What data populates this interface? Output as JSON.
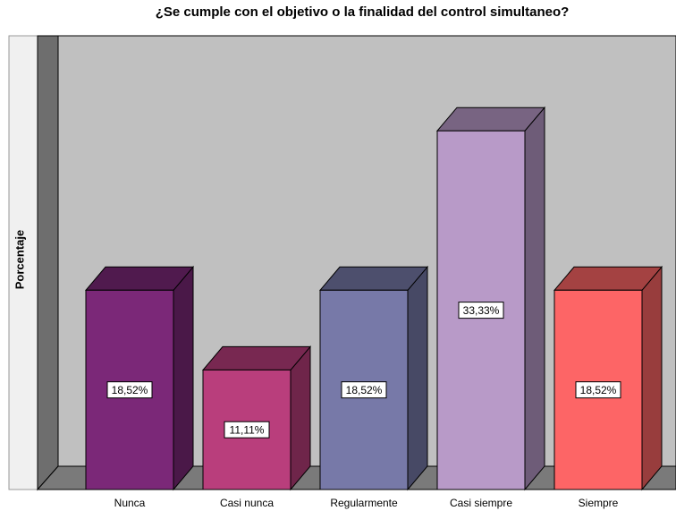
{
  "chart_data": {
    "type": "bar3d",
    "title": "¿Se cumple con el objetivo o la finalidad del control simultaneo?",
    "ylabel": "Porcentaje",
    "categories": [
      "Nunca",
      "Casi nunca",
      "Regularmente",
      "Casi siempre",
      "Siempre"
    ],
    "values": [
      18.52,
      11.11,
      18.52,
      33.33,
      18.52
    ],
    "value_labels": [
      "18,52%",
      "11,11%",
      "18,52%",
      "33,33%",
      "18,52%"
    ],
    "colors": [
      "#7b2878",
      "#b93e7c",
      "#7779a8",
      "#b89ac8",
      "#fd6566"
    ],
    "ylim": [
      0,
      40
    ]
  }
}
